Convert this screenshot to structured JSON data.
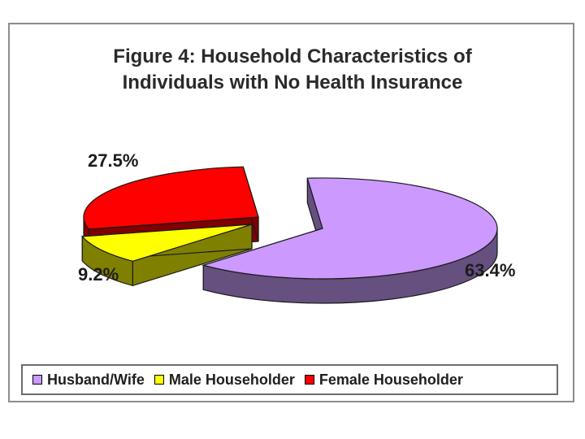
{
  "chart_data": {
    "type": "pie",
    "title": "Figure 4: Household Characteristics of Individuals with No Health Insurance",
    "title_lines": [
      "Figure 4: Household Characteristics of",
      "Individuals with No Health Insurance"
    ],
    "categories": [
      "Husband/Wife",
      "Male Householder",
      "Female Householder"
    ],
    "values": [
      63.4,
      9.2,
      27.5
    ],
    "data_labels": [
      "63.4%",
      "9.2%",
      "27.5%"
    ],
    "colors": {
      "top": [
        "#cc99ff",
        "#ffff00",
        "#ff0000"
      ],
      "side": [
        "#66507f",
        "#808000",
        "#800000"
      ]
    },
    "exploded": true,
    "three_d": true,
    "legend_position": "bottom"
  }
}
